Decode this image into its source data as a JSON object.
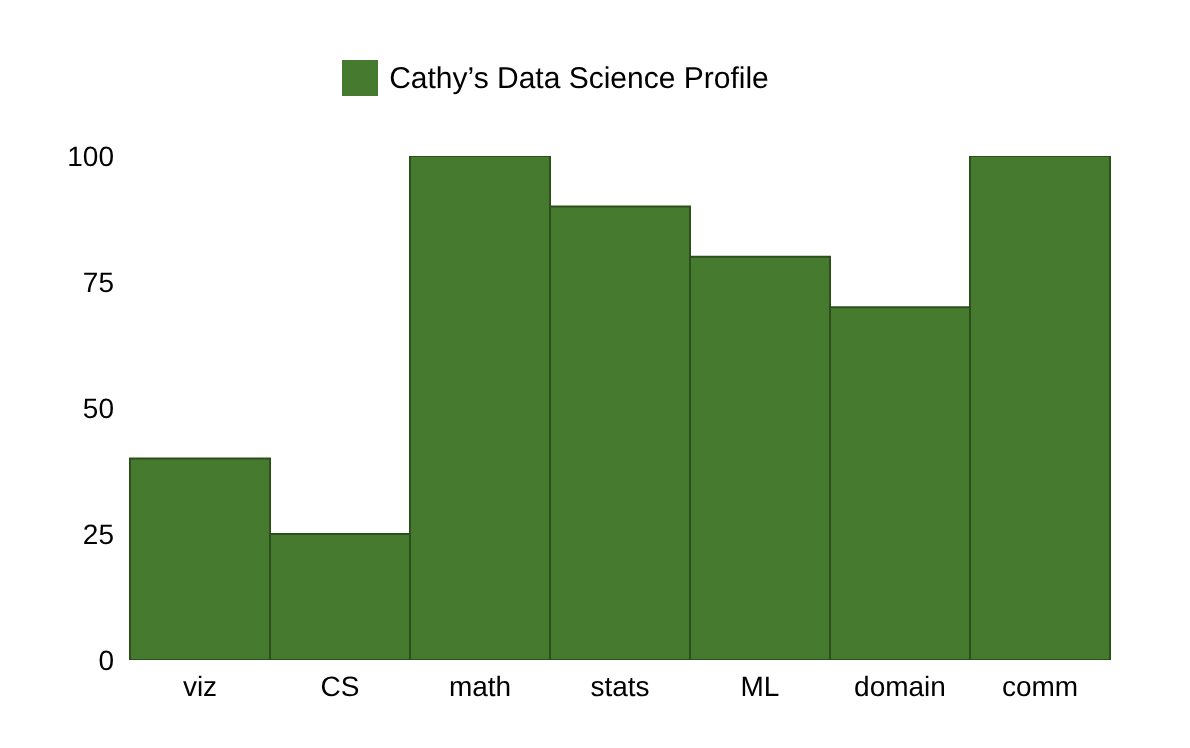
{
  "chart_data": {
    "type": "bar",
    "categories": [
      "viz",
      "CS",
      "math",
      "stats",
      "ML",
      "domain",
      "comm"
    ],
    "series": [
      {
        "name": "Cathy’s Data Science Profile",
        "color": "#467a2f",
        "values": [
          40,
          25,
          100,
          90,
          80,
          70,
          100
        ]
      }
    ],
    "ylim": [
      0,
      100
    ],
    "yticks": [
      0,
      25,
      50,
      75,
      100
    ],
    "grid": false,
    "legend": "top"
  }
}
